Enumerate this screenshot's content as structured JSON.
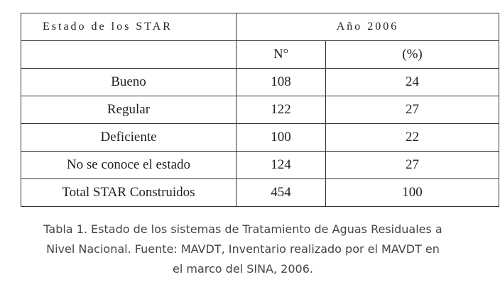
{
  "table": {
    "header": [
      "Estado de los STAR",
      "Año 2006"
    ],
    "subheader": [
      "N°",
      "(%)"
    ],
    "rows": [
      [
        "Bueno",
        108,
        24
      ],
      [
        "Regular",
        122,
        27
      ],
      [
        "Deficiente",
        100,
        22
      ],
      [
        "No se conoce el estado",
        124,
        27
      ],
      [
        "Total STAR Construidos",
        454,
        100
      ]
    ]
  },
  "caption": {
    "lines": [
      "Tabla 1. Estado de los sistemas de Tratamiento de Aguas Residuales a",
      "Nivel Nacional. Fuente: MAVDT, Inventario realizado por el MAVDT en",
      "el marco del SINA, 2006."
    ]
  }
}
